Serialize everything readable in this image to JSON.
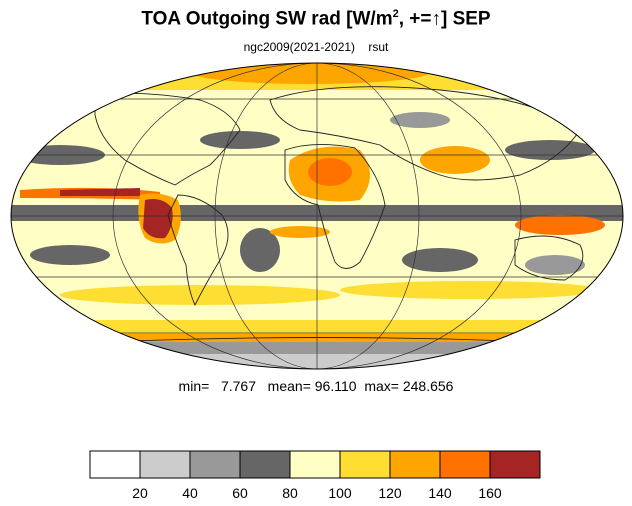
{
  "title": {
    "main": "TOA Outgoing SW rad [W/m",
    "sup": "2",
    "rest": ", +=↑] SEP"
  },
  "subtitle": {
    "left": "ngc2009(2021-2021)",
    "right": "rsut"
  },
  "stats": {
    "min_label": "min=",
    "min": "7.767",
    "mean_label": "mean=",
    "mean": "96.110",
    "max_label": "max=",
    "max": "248.656"
  },
  "colorbar": {
    "colors": [
      "#ffffff",
      "#cccccc",
      "#999999",
      "#666666",
      "#ffffc5",
      "#ffde33",
      "#ffa500",
      "#ff7200",
      "#a52424"
    ],
    "tick_labels": [
      "20",
      "40",
      "60",
      "80",
      "100",
      "120",
      "140",
      "160"
    ]
  },
  "map": {
    "projection": "mollweide",
    "ocean_base_color": "#ffffc5",
    "coast_color": "#222222",
    "grid_color": "#333333"
  }
}
